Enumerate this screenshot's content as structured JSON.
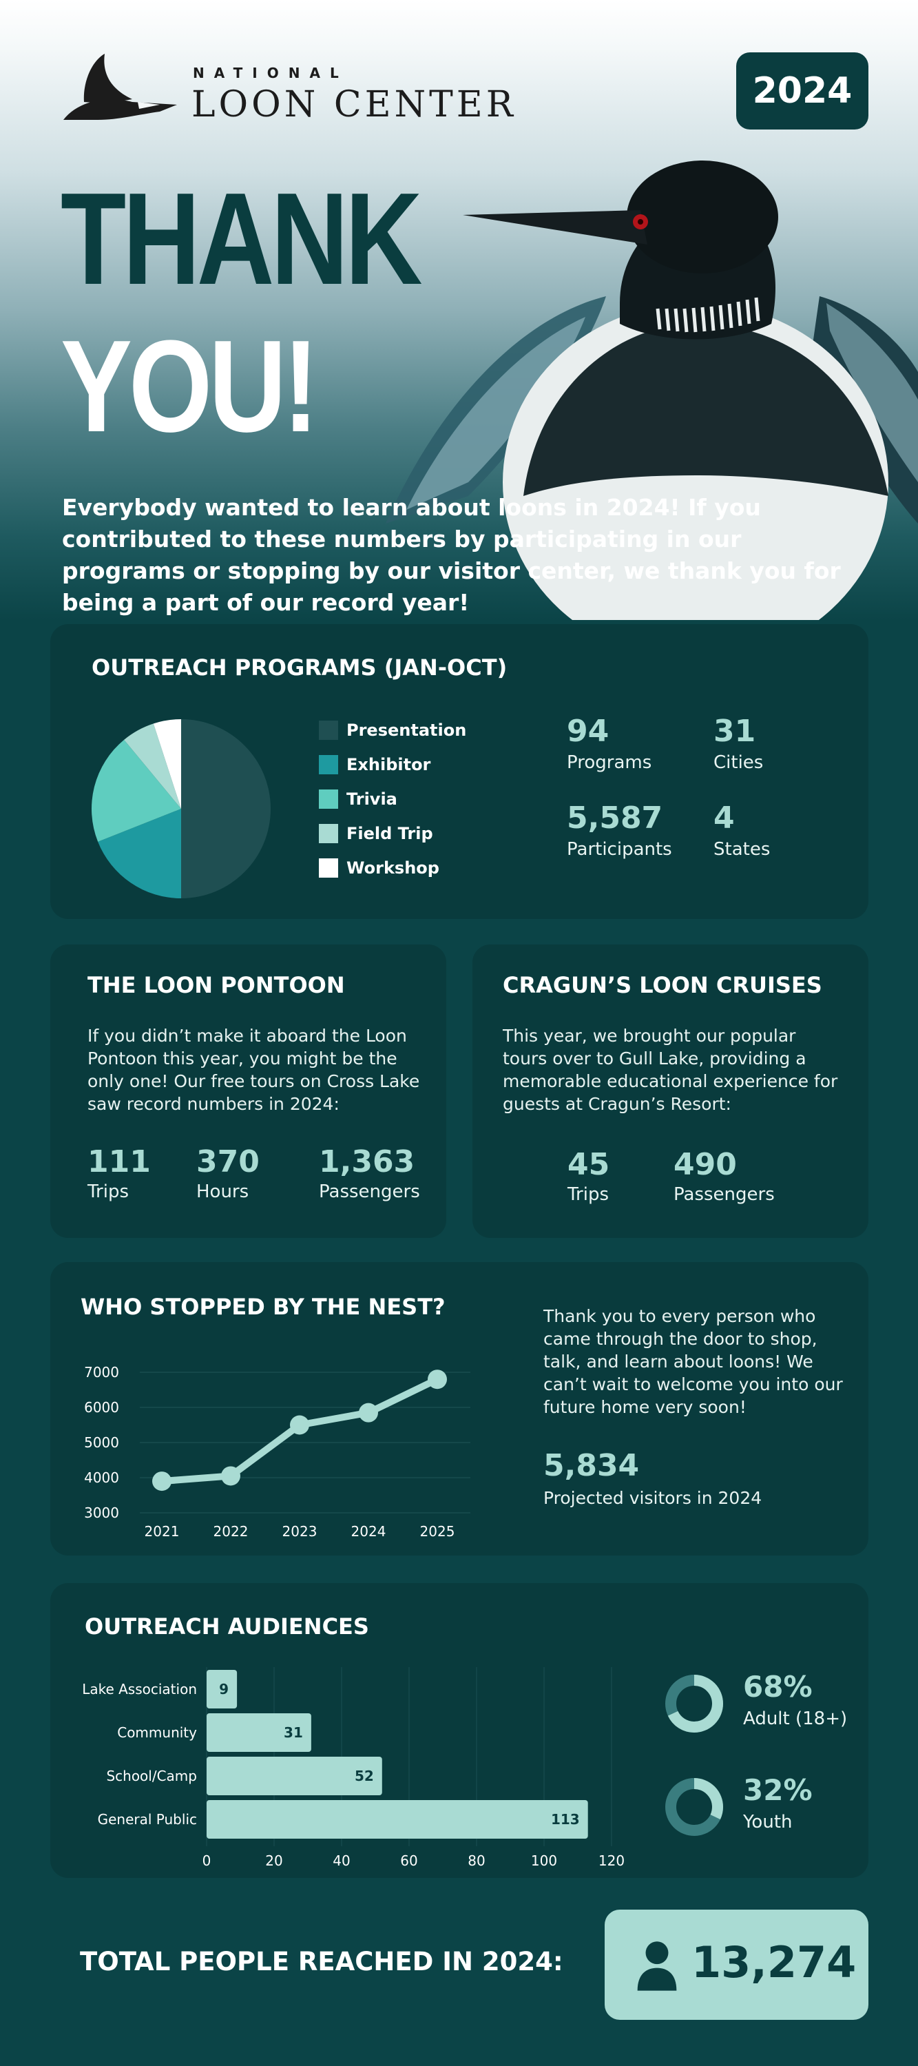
{
  "header": {
    "brand_small": "NATIONAL",
    "brand_big": "LOON CENTER",
    "year": "2024",
    "title_line1": "THANK",
    "title_line2": "YOU!",
    "intro": "Everybody wanted to learn about loons in 2024! If you contributed to these numbers by participating in our programs or stopping by our visitor center, we thank you for being a part of our record year!"
  },
  "colors": {
    "background": "#0b4447",
    "card": "#093b3d",
    "accent": "#a9dbd3",
    "presentation": "#1f4f52",
    "exhibitor": "#1e9aa0",
    "trivia": "#5fcdbf",
    "field_trip": "#a9dbd3",
    "workshop": "#ffffff"
  },
  "outreach_programs": {
    "title": "OUTREACH PROGRAMS (JAN-OCT)",
    "stats": [
      {
        "value": "94",
        "label": "Programs"
      },
      {
        "value": "31",
        "label": "Cities"
      },
      {
        "value": "5,587",
        "label": "Participants"
      },
      {
        "value": "4",
        "label": "States"
      }
    ]
  },
  "loon_pontoon": {
    "title": "THE LOON PONTOON",
    "text": "If you didn’t make it aboard the Loon Pontoon this year, you might be the only one!  Our free tours on Cross Lake saw record numbers in 2024:",
    "stats": [
      {
        "value": "111",
        "label": "Trips"
      },
      {
        "value": "370",
        "label": "Hours"
      },
      {
        "value": "1,363",
        "label": "Passengers"
      }
    ]
  },
  "cragun": {
    "title": "CRAGUN’S LOON CRUISES",
    "text": "This year, we brought our popular tours over to Gull Lake, providing a memorable educational experience for guests at Cragun’s Resort:",
    "stats": [
      {
        "value": "45",
        "label": "Trips"
      },
      {
        "value": "490",
        "label": "Passengers"
      }
    ]
  },
  "nest": {
    "title": "WHO STOPPED BY THE NEST?",
    "text": "Thank you to every person who came through the door to shop, talk, and learn about loons! We can’t wait to welcome you into our future home very soon!",
    "projected_value": "5,834",
    "projected_label": "Projected visitors in 2024"
  },
  "audiences": {
    "title": "OUTREACH AUDIENCES",
    "donuts": [
      {
        "percent": 68,
        "value": "68%",
        "label": "Adult (18+)"
      },
      {
        "percent": 32,
        "value": "32%",
        "label": "Youth"
      }
    ]
  },
  "total": {
    "label": "TOTAL PEOPLE REACHED IN 2024:",
    "value": "13,274",
    "icon": "person-icon"
  },
  "chart_data": [
    {
      "type": "pie",
      "title": "OUTREACH PROGRAMS (JAN-OCT)",
      "categories": [
        "Presentation",
        "Exhibitor",
        "Trivia",
        "Field Trip",
        "Workshop"
      ],
      "values": [
        50,
        19,
        20,
        6,
        5
      ],
      "legend": "right"
    },
    {
      "type": "line",
      "title": "WHO STOPPED BY THE NEST?",
      "x": [
        "2021",
        "2022",
        "2023",
        "2024",
        "2025"
      ],
      "values": [
        3900,
        4050,
        5500,
        5850,
        6800
      ],
      "xlabel": "",
      "ylabel": "",
      "ylim": [
        3000,
        7000
      ],
      "yticks": [
        3000,
        4000,
        5000,
        6000,
        7000
      ],
      "grid": true
    },
    {
      "type": "bar",
      "orientation": "horizontal",
      "title": "OUTREACH AUDIENCES",
      "categories": [
        "Lake Association",
        "Community",
        "School/Camp",
        "General Public"
      ],
      "values": [
        9,
        31,
        52,
        113
      ],
      "xlim": [
        0,
        120
      ],
      "xticks": [
        0,
        20,
        40,
        60,
        80,
        100,
        120
      ],
      "grid": true
    }
  ]
}
